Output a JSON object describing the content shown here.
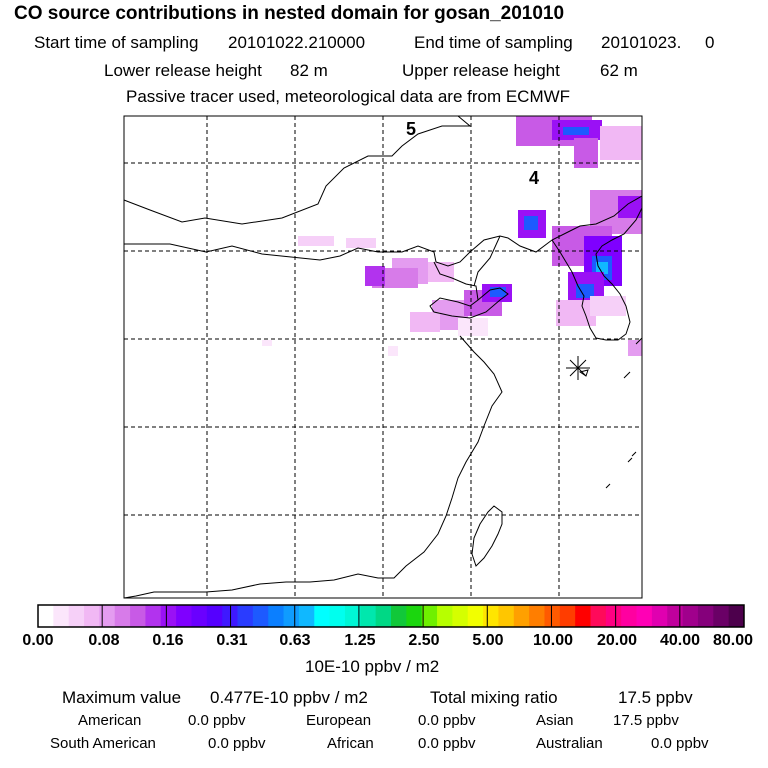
{
  "header": {
    "title": "CO  source contributions in nested domain for gosan_201010",
    "start_label": "Start time of sampling",
    "start_value": "20101022.210000",
    "end_label": "End time of sampling",
    "end_value": "20101023.     0",
    "lower_label": "Lower release height",
    "lower_value": "82 m",
    "upper_label": "Upper release height",
    "upper_value": "62 m",
    "note": "Passive tracer used, meteorological data are from ECMWF"
  },
  "chart_data": {
    "type": "heatmap",
    "title": "CO  source contributions in nested domain for gosan_201010",
    "units_label": "10E-10 ppbv / m2",
    "day_markers": [
      "5",
      "4"
    ],
    "colorbar": {
      "tick_labels": [
        "0.00",
        "0.08",
        "0.16",
        "0.31",
        "0.63",
        "1.25",
        "2.50",
        "5.00",
        "10.00",
        "20.00",
        "40.00",
        "80.00"
      ],
      "colors": [
        "#ffffff",
        "#fbe6fb",
        "#f6d0f8",
        "#f1b8f4",
        "#e49cf0",
        "#d77be9",
        "#c85ae6",
        "#b233ee",
        "#9a11f5",
        "#7f00ff",
        "#6a00ff",
        "#5500ff",
        "#3f19ff",
        "#2a3cff",
        "#1d5aff",
        "#0b7fff",
        "#0f9cff",
        "#10b8ff",
        "#00ffff",
        "#00ffee",
        "#00f7d6",
        "#00e7ad",
        "#00d885",
        "#11c83a",
        "#1bd60e",
        "#6ff000",
        "#b7ff00",
        "#d5ff00",
        "#f2ff00",
        "#ffe500",
        "#ffc600",
        "#ffa000",
        "#ff7e00",
        "#ff5a00",
        "#ff3d00",
        "#ff0000",
        "#ff0a5a",
        "#ff0082",
        "#ff00a0",
        "#ff00b5",
        "#e000b0",
        "#c0009d",
        "#a0008c",
        "#85007b",
        "#6a0066",
        "#4d004c"
      ]
    },
    "hotspots": [
      {
        "lon": 127.0,
        "lat": 41.5,
        "level": "0.63"
      },
      {
        "lon": 125.8,
        "lat": 38.7,
        "level": "0.31"
      },
      {
        "lon": 125.5,
        "lat": 37.6,
        "level": "0.63"
      },
      {
        "lon": 122.1,
        "lat": 38.9,
        "level": "0.31"
      },
      {
        "lon": 122.6,
        "lat": 34.9,
        "level": "0.31"
      },
      {
        "lon": 118.7,
        "lat": 37.9,
        "level": "0.16"
      },
      {
        "lon": 121.0,
        "lat": 36.0,
        "level": "0.08"
      },
      {
        "lon": 128.0,
        "lat": 35.8,
        "level": "0.16"
      }
    ],
    "receptor": {
      "name": "Gosan",
      "marker": "asterisk"
    },
    "grid": true
  },
  "stats": {
    "max_label": "Maximum value",
    "max_value": "0.477E-10 ppbv / m2",
    "total_label": "Total mixing ratio",
    "total_value": "17.5 ppbv",
    "american_label": "American",
    "american_value": "0.0 ppbv",
    "european_label": "European",
    "european_value": "0.0 ppbv",
    "asian_label": "Asian",
    "asian_value": "17.5 ppbv",
    "south_american_label": "South American",
    "south_american_value": "0.0 ppbv",
    "african_label": "African",
    "african_value": "0.0 ppbv",
    "australian_label": "Australian",
    "australian_value": "0.0 ppbv"
  }
}
